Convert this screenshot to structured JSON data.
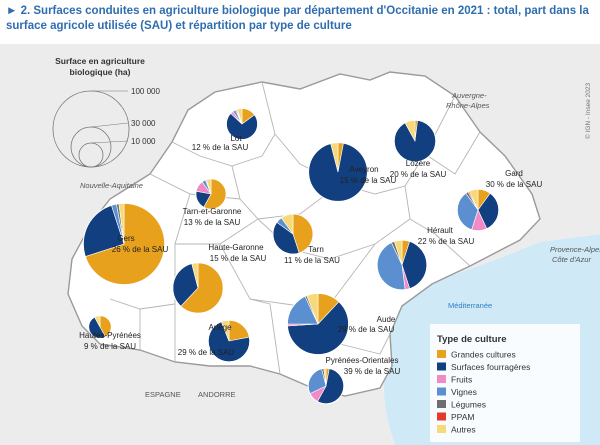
{
  "title": {
    "marker": "►",
    "text": "2. Surfaces conduites en agriculture biologique par département d'Occitanie en 2021 : total, part dans la surface agricole utilisée (SAU) et répartition par type de culture"
  },
  "colors": {
    "grandes_cultures": "#e8a11d",
    "surfaces_fourrageres": "#123f7f",
    "fruits": "#f28ac7",
    "vignes": "#5b8fcf",
    "legumes": "#6f6f6f",
    "ppam": "#e23b2b",
    "autres": "#f8d97a",
    "sea": "#cfe9f6",
    "land_occitanie": "#ffffff",
    "land_outside": "#ececec"
  },
  "size_legend": {
    "title_line1": "Surface en agriculture",
    "title_line2": "biologique (ha)",
    "values": [
      "100 000",
      "30 000",
      "10 000"
    ]
  },
  "regions": {
    "auvergne1": "Auvergne-",
    "auvergne2": "Rhône-Alpes",
    "nouvelle_aquitaine": "Nouvelle-Aquitaine",
    "paca1": "Provence-Alpes-",
    "paca2": "Côte d'Azur",
    "mediterranee": "Méditerranée",
    "espagne": "ESPAGNE",
    "andorre": "ANDORRE"
  },
  "copyright": "© IGN - Insee 2023",
  "legend": {
    "title": "Type de culture",
    "items": [
      {
        "key": "grandes_cultures",
        "label": "Grandes cultures"
      },
      {
        "key": "surfaces_fourrageres",
        "label": "Surfaces fourragères"
      },
      {
        "key": "fruits",
        "label": "Fruits"
      },
      {
        "key": "vignes",
        "label": "Vignes"
      },
      {
        "key": "legumes",
        "label": "Légumes"
      },
      {
        "key": "ppam",
        "label": "PPAM"
      },
      {
        "key": "autres",
        "label": "Autres"
      }
    ]
  },
  "departments": [
    {
      "name": "Lot",
      "share": "12 % de la SAU",
      "surface_ha": 17000,
      "composition": {
        "grandes_cultures": 0.15,
        "surfaces_fourrageres": 0.72,
        "fruits": 0.03,
        "vignes": 0.03,
        "legumes": 0.01,
        "ppam": 0.01,
        "autres": 0.05
      }
    },
    {
      "name": "Lozère",
      "share": "20 % de la SAU",
      "surface_ha": 30000,
      "composition": {
        "grandes_cultures": 0.02,
        "surfaces_fourrageres": 0.9,
        "fruits": 0.0,
        "vignes": 0.0,
        "legumes": 0.0,
        "ppam": 0.0,
        "autres": 0.08
      }
    },
    {
      "name": "Gard",
      "share": "30 % de la SAU",
      "surface_ha": 30000,
      "composition": {
        "grandes_cultures": 0.1,
        "surfaces_fourrageres": 0.33,
        "fruits": 0.12,
        "vignes": 0.35,
        "legumes": 0.02,
        "ppam": 0.01,
        "autres": 0.07
      }
    },
    {
      "name": "Aveyron",
      "share": "15 % de la SAU",
      "surface_ha": 60000,
      "composition": {
        "grandes_cultures": 0.03,
        "surfaces_fourrageres": 0.93,
        "fruits": 0.0,
        "vignes": 0.0,
        "legumes": 0.0,
        "ppam": 0.0,
        "autres": 0.04
      }
    },
    {
      "name": "Tarn-et-Garonne",
      "share": "13 % de la SAU",
      "surface_ha": 16000,
      "composition": {
        "grandes_cultures": 0.58,
        "surfaces_fourrageres": 0.2,
        "fruits": 0.12,
        "vignes": 0.04,
        "legumes": 0.01,
        "ppam": 0.0,
        "autres": 0.05
      }
    },
    {
      "name": "Gers",
      "share": "26 % de la SAU",
      "surface_ha": 115000,
      "composition": {
        "grandes_cultures": 0.7,
        "surfaces_fourrageres": 0.25,
        "fruits": 0.0,
        "vignes": 0.02,
        "legumes": 0.01,
        "ppam": 0.0,
        "autres": 0.02
      }
    },
    {
      "name": "Haute-Garonne",
      "share": "15 % de la SAU",
      "surface_ha": 44000,
      "composition": {
        "grandes_cultures": 0.62,
        "surfaces_fourrageres": 0.34,
        "fruits": 0.0,
        "vignes": 0.0,
        "legumes": 0.0,
        "ppam": 0.0,
        "autres": 0.04
      }
    },
    {
      "name": "Tarn",
      "share": "11 % de la SAU",
      "surface_ha": 28000,
      "composition": {
        "grandes_cultures": 0.45,
        "surfaces_fourrageres": 0.4,
        "fruits": 0.0,
        "vignes": 0.05,
        "legumes": 0.0,
        "ppam": 0.0,
        "autres": 0.1
      }
    },
    {
      "name": "Hérault",
      "share": "22 % de la SAU",
      "surface_ha": 43000,
      "composition": {
        "grandes_cultures": 0.05,
        "surfaces_fourrageres": 0.4,
        "fruits": 0.03,
        "vignes": 0.45,
        "legumes": 0.02,
        "ppam": 0.0,
        "autres": 0.05
      }
    },
    {
      "name": "Hautes-Pyrénées",
      "share": "9 % de la SAU",
      "surface_ha": 9000,
      "composition": {
        "grandes_cultures": 0.42,
        "surfaces_fourrageres": 0.5,
        "fruits": 0.0,
        "vignes": 0.0,
        "legumes": 0.0,
        "ppam": 0.0,
        "autres": 0.08
      }
    },
    {
      "name": "Ariège",
      "share": "29 % de la SAU",
      "surface_ha": 30000,
      "composition": {
        "grandes_cultures": 0.22,
        "surfaces_fourrageres": 0.72,
        "fruits": 0.0,
        "vignes": 0.0,
        "legumes": 0.0,
        "ppam": 0.0,
        "autres": 0.06
      }
    },
    {
      "name": "Aude",
      "share": "29 % de la SAU",
      "surface_ha": 65000,
      "composition": {
        "grandes_cultures": 0.12,
        "surfaces_fourrageres": 0.62,
        "fruits": 0.01,
        "vignes": 0.18,
        "legumes": 0.01,
        "ppam": 0.0,
        "autres": 0.06
      }
    },
    {
      "name": "Pyrénées-Orientales",
      "share": "39 % de la SAU",
      "surface_ha": 22000,
      "composition": {
        "grandes_cultures": 0.03,
        "surfaces_fourrageres": 0.55,
        "fruits": 0.1,
        "vignes": 0.28,
        "legumes": 0.02,
        "ppam": 0.0,
        "autres": 0.02
      }
    }
  ]
}
